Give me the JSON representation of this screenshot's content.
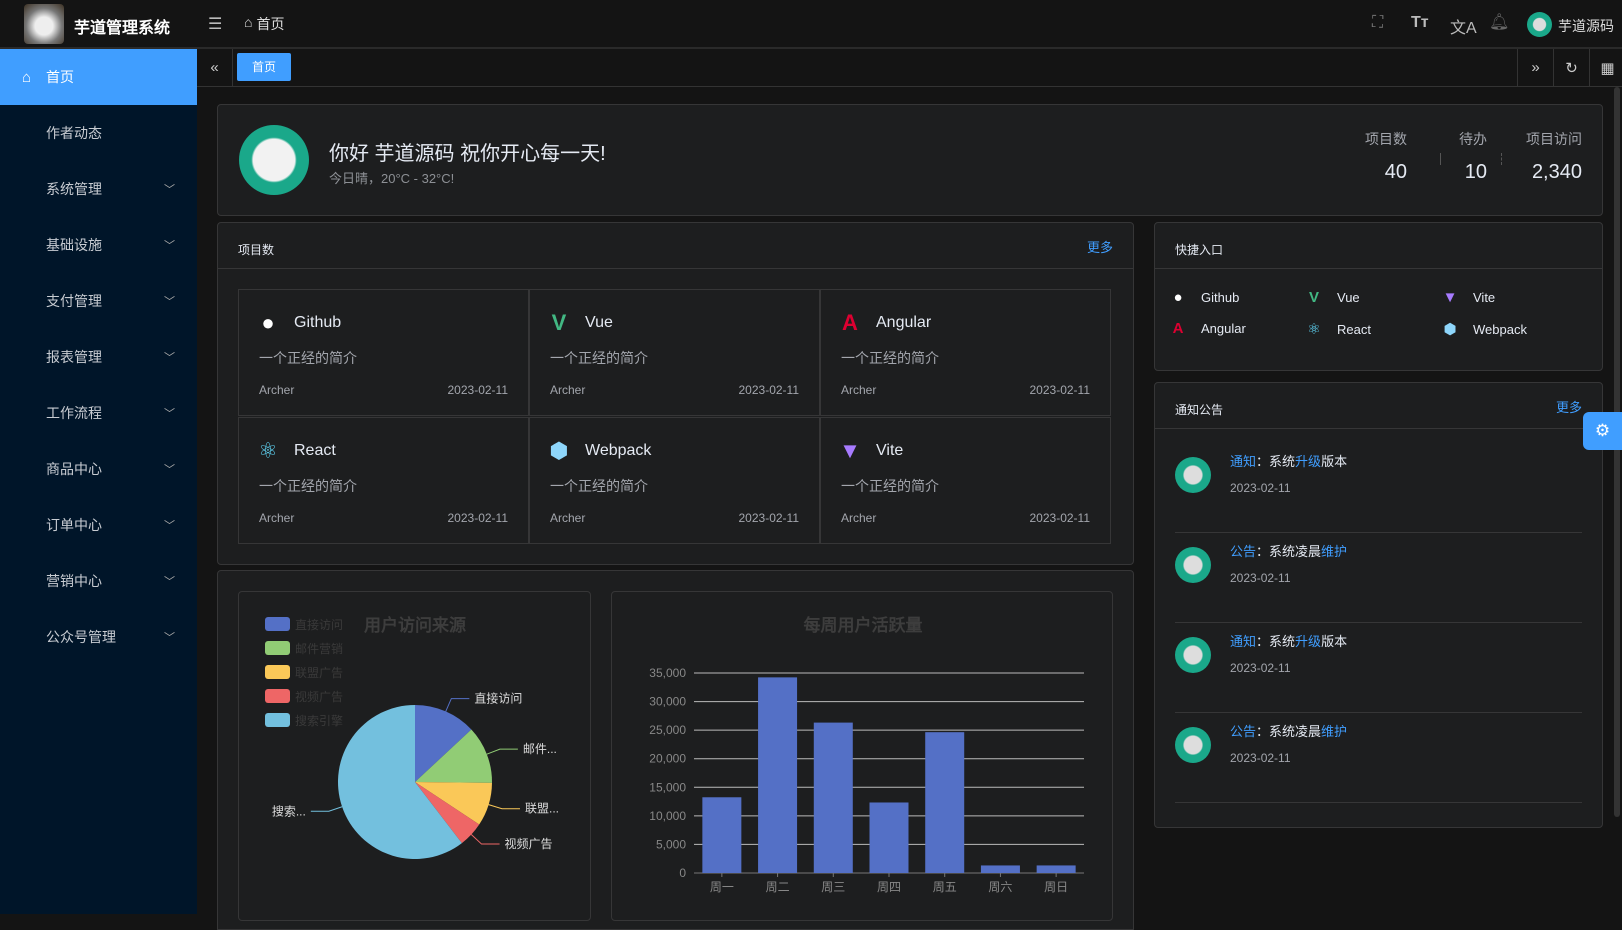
{
  "header": {
    "app_title": "芋道管理系统",
    "breadcrumb": "首页",
    "username": "芋道源码",
    "icons": [
      "menu-fold-icon",
      "home-icon",
      "fullscreen-icon",
      "font-size-icon",
      "translate-icon",
      "bell-icon"
    ]
  },
  "sidebar": {
    "items": [
      {
        "label": "首页",
        "active": true
      },
      {
        "label": "作者动态"
      },
      {
        "label": "系统管理",
        "expandable": true
      },
      {
        "label": "基础设施",
        "expandable": true
      },
      {
        "label": "支付管理",
        "expandable": true
      },
      {
        "label": "报表管理",
        "expandable": true
      },
      {
        "label": "工作流程",
        "expandable": true
      },
      {
        "label": "商品中心",
        "expandable": true
      },
      {
        "label": "订单中心",
        "expandable": true
      },
      {
        "label": "营销中心",
        "expandable": true
      },
      {
        "label": "公众号管理",
        "expandable": true
      }
    ]
  },
  "tabs": {
    "items": [
      {
        "label": "首页"
      }
    ]
  },
  "welcome": {
    "greeting": "你好 芋道源码 祝你开心每一天!",
    "weather": "今日晴，20°C - 32°C!",
    "stats": [
      {
        "label": "项目数",
        "value": "40"
      },
      {
        "label": "待办",
        "value": "10"
      },
      {
        "label": "项目访问",
        "value": "2,340"
      }
    ]
  },
  "projects": {
    "title": "项目数",
    "more": "更多",
    "items": [
      {
        "name": "Github",
        "icon": "github-icon",
        "desc": "一个正经的简介",
        "author": "Archer",
        "date": "2023-02-11"
      },
      {
        "name": "Vue",
        "icon": "vue-icon",
        "desc": "一个正经的简介",
        "author": "Archer",
        "date": "2023-02-11"
      },
      {
        "name": "Angular",
        "icon": "angular-icon",
        "desc": "一个正经的简介",
        "author": "Archer",
        "date": "2023-02-11"
      },
      {
        "name": "React",
        "icon": "react-icon",
        "desc": "一个正经的简介",
        "author": "Archer",
        "date": "2023-02-11"
      },
      {
        "name": "Webpack",
        "icon": "webpack-icon",
        "desc": "一个正经的简介",
        "author": "Archer",
        "date": "2023-02-11"
      },
      {
        "name": "Vite",
        "icon": "vite-icon",
        "desc": "一个正经的简介",
        "author": "Archer",
        "date": "2023-02-11"
      }
    ]
  },
  "shortcuts": {
    "title": "快捷入口",
    "items": [
      {
        "label": "Github",
        "color": "#ffffff"
      },
      {
        "label": "Vue",
        "color": "#42b883"
      },
      {
        "label": "Vite",
        "color": "#a77bff"
      },
      {
        "label": "Angular",
        "color": "#dd0031"
      },
      {
        "label": "React",
        "color": "#61dafb"
      },
      {
        "label": "Webpack",
        "color": "#8ed6fb"
      }
    ]
  },
  "notices": {
    "title": "通知公告",
    "more": "更多",
    "items": [
      {
        "type": "通知",
        "sep": "：",
        "pre": "系统",
        "hl": "升级",
        "post": "版本",
        "date": "2023-02-11"
      },
      {
        "type": "公告",
        "sep": "：",
        "pre": "系统凌晨",
        "hl": "维护",
        "post": "",
        "date": "2023-02-11"
      },
      {
        "type": "通知",
        "sep": "：",
        "pre": "系统",
        "hl": "升级",
        "post": "版本",
        "date": "2023-02-11"
      },
      {
        "type": "公告",
        "sep": "：",
        "pre": "系统凌晨",
        "hl": "维护",
        "post": "",
        "date": "2023-02-11"
      }
    ]
  },
  "chart_data": [
    {
      "type": "pie",
      "title": "用户访问来源",
      "legend_position": "top-left",
      "slices": [
        {
          "name": "直接访问",
          "value": 335,
          "color": "#5470c6",
          "label": "直接访问"
        },
        {
          "name": "邮件营销",
          "value": 310,
          "color": "#91cc75",
          "label": "邮件..."
        },
        {
          "name": "联盟广告",
          "value": 234,
          "color": "#fac858",
          "label": "联盟..."
        },
        {
          "name": "视频广告",
          "value": 135,
          "color": "#ee6666",
          "label": "视频广告"
        },
        {
          "name": "搜索引擎",
          "value": 1548,
          "color": "#73c0de",
          "label": "搜索..."
        }
      ]
    },
    {
      "type": "bar",
      "title": "每周用户活跃量",
      "categories": [
        "周一",
        "周二",
        "周三",
        "周四",
        "周五",
        "周六",
        "周日"
      ],
      "values": [
        13253,
        34235,
        26321,
        12340,
        24643,
        1322,
        1324
      ],
      "ylim": [
        0,
        35000
      ],
      "yticks": [
        "0",
        "5,000",
        "10,000",
        "15,000",
        "20,000",
        "25,000",
        "30,000",
        "35,000"
      ],
      "grid": true,
      "color": "#5470c6"
    }
  ]
}
